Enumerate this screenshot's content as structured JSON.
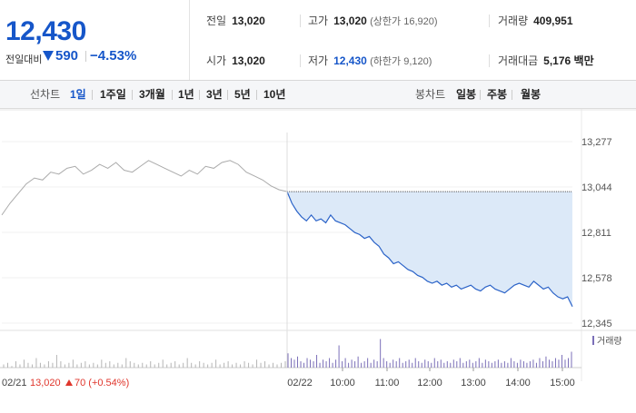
{
  "summary": {
    "price": "12,430",
    "diff_label": "전일대비",
    "diff_value": "590",
    "diff_pct": "−4.53%",
    "direction": "down",
    "down_color": "#1656c9",
    "up_color": "#e0362c"
  },
  "stats": {
    "prev_close_label": "전일",
    "prev_close": "13,020",
    "high_label": "고가",
    "high": "13,020",
    "upper_limit": "(상한가 16,920)",
    "volume_label": "거래량",
    "volume": "409,951",
    "open_label": "시가",
    "open": "13,020",
    "low_label": "저가",
    "low": "12,430",
    "lower_limit": "(하한가 9,120)",
    "amount_label": "거래대금",
    "amount": "5,176 백만"
  },
  "periods": {
    "label": "선차트",
    "items": [
      "1일",
      "1주일",
      "3개월",
      "1년",
      "3년",
      "5년",
      "10년"
    ],
    "active": "1일"
  },
  "candles": {
    "label": "봉차트",
    "items": [
      "일봉",
      "주봉",
      "월봉"
    ]
  },
  "chart_data": {
    "type": "line",
    "y_ticks": [
      "13,277",
      "13,044",
      "12,811",
      "12,578",
      "12,345"
    ],
    "ylim": [
      12345,
      13277
    ],
    "reference_line": 13020,
    "x_ticks": [
      "02/22",
      "10:00",
      "11:00",
      "12:00",
      "13:00",
      "14:00",
      "15:00"
    ],
    "prev_day": {
      "date": "02/21",
      "close": "13,020",
      "change": "70",
      "change_pct": "(+0.54%)",
      "color": "#e0362c"
    },
    "series": [
      {
        "color": "#aaaaaa",
        "values": [
          12900,
          12960,
          13010,
          13060,
          13090,
          13080,
          13120,
          13110,
          13140,
          13150,
          13110,
          13130,
          13160,
          13140,
          13170,
          13130,
          13120,
          13150,
          13180,
          13160,
          13140,
          13120,
          13100,
          13130,
          13110,
          13150,
          13140,
          13170,
          13180,
          13160,
          13120,
          13100,
          13080,
          13050,
          13030,
          13020
        ]
      },
      {
        "color": "#2b63c8",
        "fill": "#dce9f8",
        "values": [
          13020,
          12960,
          12920,
          12890,
          12870,
          12900,
          12870,
          12880,
          12860,
          12900,
          12870,
          12860,
          12850,
          12830,
          12810,
          12800,
          12780,
          12790,
          12760,
          12740,
          12700,
          12680,
          12650,
          12660,
          12640,
          12620,
          12610,
          12590,
          12580,
          12560,
          12550,
          12560,
          12540,
          12550,
          12530,
          12540,
          12520,
          12530,
          12540,
          12520,
          12510,
          12530,
          12540,
          12520,
          12510,
          12500,
          12520,
          12540,
          12550,
          12540,
          12530,
          12560,
          12540,
          12520,
          12530,
          12500,
          12480,
          12470,
          12480,
          12430
        ]
      }
    ],
    "volume_label": "거래량",
    "volume_color": "#7b6fb8",
    "prev_volume_color": "#b5b5b5",
    "volume_prev": [
      2,
      3,
      1,
      4,
      2,
      5,
      3,
      2,
      6,
      3,
      2,
      4,
      3,
      8,
      4,
      2,
      3,
      5,
      2,
      3,
      4,
      2,
      3,
      2,
      5,
      3,
      4,
      2,
      3,
      2,
      6,
      4,
      3,
      2,
      3,
      2,
      4,
      2,
      3,
      5,
      2,
      3,
      4,
      2,
      3,
      6,
      3,
      2,
      4,
      3,
      2,
      3,
      5,
      2,
      3,
      4,
      2,
      3,
      2,
      4,
      3,
      2,
      5,
      3,
      4,
      2,
      3,
      2,
      3,
      4
    ],
    "volume_today": [
      9,
      6,
      5,
      7,
      4,
      3,
      6,
      5,
      4,
      8,
      3,
      5,
      4,
      6,
      3,
      5,
      14,
      4,
      6,
      3,
      5,
      4,
      7,
      3,
      4,
      6,
      3,
      5,
      4,
      18,
      6,
      4,
      3,
      5,
      4,
      6,
      3,
      4,
      5,
      3,
      6,
      4,
      3,
      5,
      4,
      3,
      6,
      4,
      5,
      3,
      4,
      3,
      5,
      4,
      6,
      3,
      4,
      5,
      3,
      4,
      6,
      3,
      5,
      4,
      3,
      4,
      5,
      3,
      4,
      3,
      6,
      4,
      3,
      5,
      4,
      3,
      4,
      5,
      3,
      6,
      4,
      7,
      5,
      4,
      6,
      5,
      8,
      5,
      6,
      10
    ]
  }
}
